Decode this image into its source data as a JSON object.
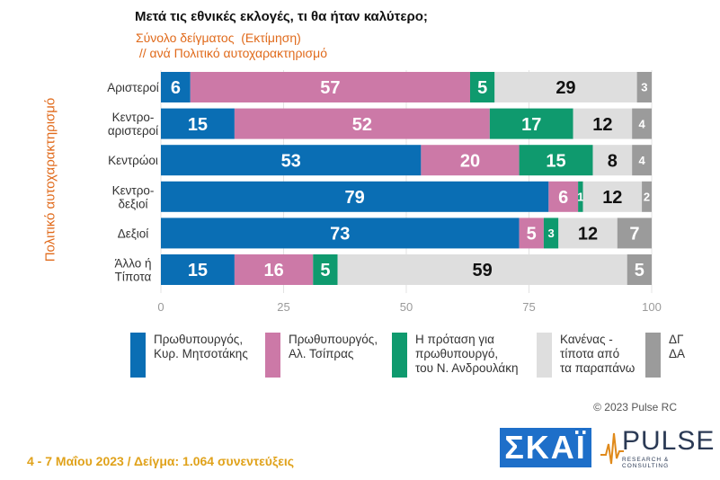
{
  "title": "Μετά τις εθνικές εκλογές, τι θα ήταν καλύτερο;",
  "subtitle": "Σύνολο δείγματος  (Εκτίμηση)\n // ανά Πολιτικό αυτοχαρακτηρισμό",
  "copyright": "© 2023 Pulse RC",
  "footer": "4 - 7  Μαΐου  2023  /  Δείγμα:  1.064 συνεντεύξεις",
  "logos": {
    "skai": "ΣΚΑΪ",
    "pulse": "PULSE",
    "pulse_sub": "RESEARCH & CONSULTING"
  },
  "colors": {
    "mitsotakis": "#0a6eb4",
    "tsipras": "#cc79a7",
    "androulakis": "#0f9a6e",
    "kanenas": "#dedede",
    "dgda": "#9b9b9b",
    "orange": "#e06a1b",
    "footer": "#e0a21b"
  },
  "chart_data": {
    "type": "bar",
    "orientation": "horizontal",
    "stacked": true,
    "ylabel": "Πολιτικό αυτοχαρακτηρισμό",
    "categories": [
      "Αριστεροί",
      "Κεντρο-\nαριστεροί",
      "Κεντρώοι",
      "Κεντρο-\nδεξιοί",
      "Δεξιοί",
      "Άλλο ή\nΤίποτα"
    ],
    "xlim": [
      0,
      100
    ],
    "xticks": [
      0,
      25,
      50,
      75,
      100
    ],
    "series": [
      {
        "name": "Πρωθυπουργός,\nΚυρ. Μητσοτάκης",
        "color": "#0a6eb4",
        "values": [
          6,
          15,
          53,
          79,
          73,
          15
        ]
      },
      {
        "name": "Πρωθυπουργός,\nΑλ. Τσίπρας",
        "color": "#cc79a7",
        "values": [
          57,
          52,
          20,
          6,
          5,
          16
        ]
      },
      {
        "name": "Η πρόταση για\nπρωθυπουργό,\nτου Ν. Ανδρουλάκη",
        "color": "#0f9a6e",
        "values": [
          5,
          17,
          15,
          1,
          3,
          5
        ]
      },
      {
        "name": "Κανένας -\nτίποτα από\nτα παραπάνω",
        "color": "#dedede",
        "values": [
          29,
          12,
          8,
          12,
          12,
          59
        ]
      },
      {
        "name": "ΔΓ\nΔΑ",
        "color": "#9b9b9b",
        "values": [
          3,
          4,
          4,
          2,
          7,
          5
        ]
      }
    ],
    "grid": true,
    "legend": "bottom"
  }
}
